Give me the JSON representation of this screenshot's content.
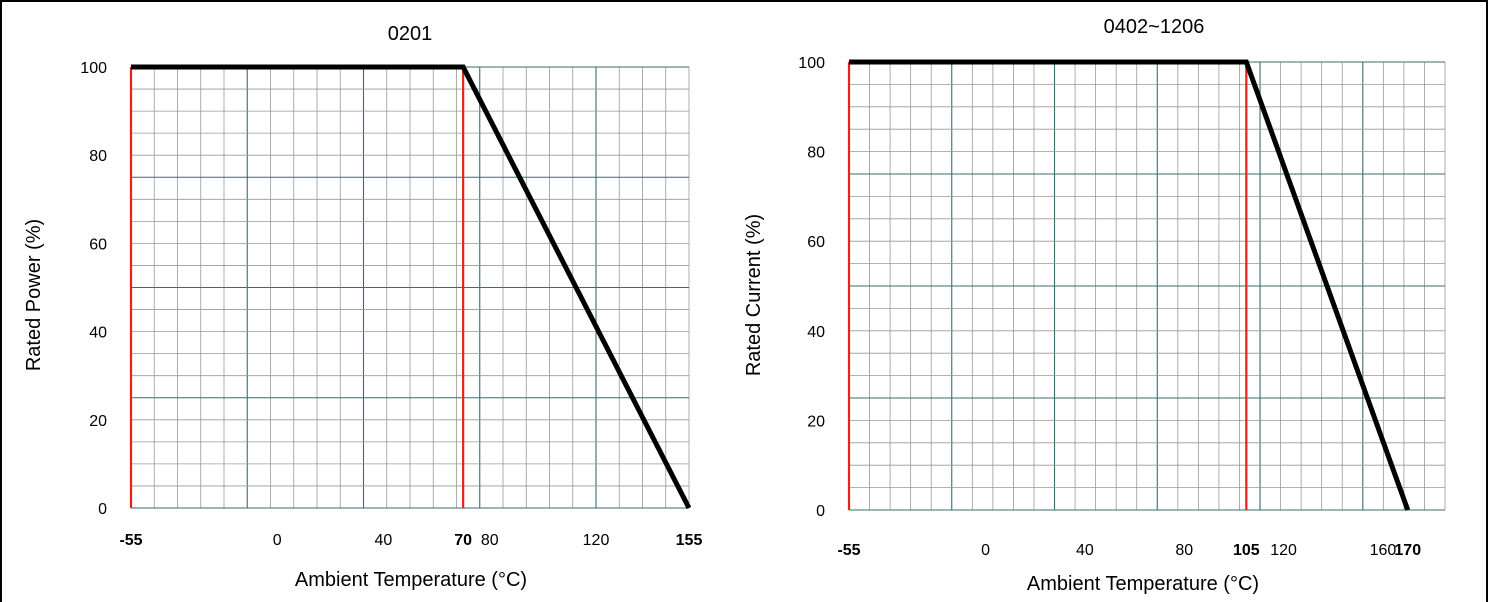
{
  "chart_data": [
    {
      "type": "line",
      "title": "0201",
      "xlabel": "Ambient Temperature (°C)",
      "ylabel": "Rated Power (%)",
      "xlim": [
        -55,
        155
      ],
      "ylim": [
        0,
        100
      ],
      "x_ticks": [
        {
          "label": "-55",
          "value": -55,
          "bold": true
        },
        {
          "label": "0",
          "value": 0,
          "bold": false
        },
        {
          "label": "40",
          "value": 40,
          "bold": false
        },
        {
          "label": "70",
          "value": 70,
          "bold": true
        },
        {
          "label": "80",
          "value": 80,
          "bold": false
        },
        {
          "label": "120",
          "value": 120,
          "bold": false
        },
        {
          "label": "155",
          "value": 155,
          "bold": true
        }
      ],
      "y_ticks": [
        "0",
        "20",
        "40",
        "60",
        "80",
        "100"
      ],
      "series": [
        {
          "x": [
            -55,
            70,
            155
          ],
          "y": [
            100,
            100,
            0
          ],
          "color": "#000000"
        }
      ],
      "markers": [
        {
          "x": -55,
          "color": "#e8211a"
        },
        {
          "x": 70,
          "color": "#e8211a"
        }
      ],
      "grid": true,
      "grid_color_minor": "#999999",
      "grid_color_major": "#3d6b6e"
    },
    {
      "type": "line",
      "title": "0402~1206",
      "xlabel": "Ambient Temperature (°C)",
      "ylabel": "Rated Current (%)",
      "xlim": [
        -55,
        185
      ],
      "ylim": [
        0,
        100
      ],
      "x_ticks": [
        {
          "label": "-55",
          "value": -55,
          "bold": true
        },
        {
          "label": "0",
          "value": 0,
          "bold": false
        },
        {
          "label": "40",
          "value": 40,
          "bold": false
        },
        {
          "label": "80",
          "value": 80,
          "bold": false
        },
        {
          "label": "105",
          "value": 105,
          "bold": true
        },
        {
          "label": "120",
          "value": 120,
          "bold": false
        },
        {
          "label": "160",
          "value": 160,
          "bold": false
        },
        {
          "label": "170",
          "value": 170,
          "bold": true
        }
      ],
      "y_ticks": [
        "0",
        "20",
        "40",
        "60",
        "80",
        "100"
      ],
      "series": [
        {
          "x": [
            -55,
            105,
            170
          ],
          "y": [
            100,
            100,
            0
          ],
          "color": "#000000"
        }
      ],
      "markers": [
        {
          "x": -55,
          "color": "#e8211a"
        },
        {
          "x": 105,
          "color": "#e8211a"
        }
      ],
      "grid": true,
      "grid_color_minor": "#999999",
      "grid_color_major": "#3d6b6e"
    }
  ]
}
